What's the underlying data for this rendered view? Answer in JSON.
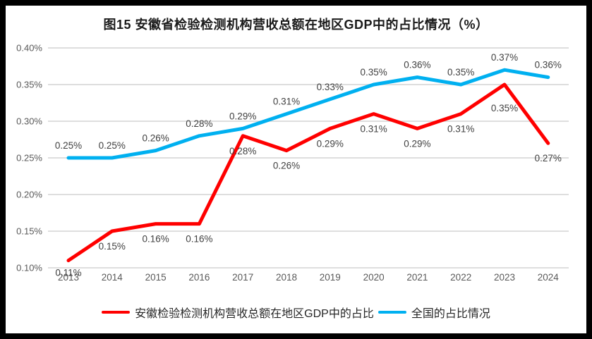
{
  "title": "图15 安徽省检验检测机构营收总额在地区GDP中的占比情况（%）",
  "colors": {
    "frame": "#000000",
    "background": "#FFFFFF",
    "grid": "#D9D9D9",
    "axis_text": "#595959",
    "label_text": "#404040",
    "anhui_red": "#FF0000",
    "national_blue": "#00B0F0"
  },
  "chart_data": {
    "type": "line",
    "title": "图15 安徽省检验检测机构营收总额在地区GDP中的占比情况（%）",
    "categories": [
      "2013",
      "2014",
      "2015",
      "2016",
      "2017",
      "2018",
      "2019",
      "2020",
      "2021",
      "2022",
      "2023",
      "2024"
    ],
    "series": [
      {
        "id": "anhui",
        "name": "安徽检验检测机构营收总额在地区GDP中的占比",
        "color": "#FF0000",
        "values": [
          0.11,
          0.15,
          0.16,
          0.16,
          0.28,
          0.26,
          0.29,
          0.31,
          0.29,
          0.31,
          0.35,
          0.27
        ],
        "labels": [
          "0.11%",
          "0.15%",
          "0.16%",
          "0.16%",
          "0.28%",
          "0.26%",
          "0.29%",
          "0.31%",
          "0.29%",
          "0.31%",
          "0.35%",
          "0.27%"
        ]
      },
      {
        "id": "national",
        "name": "全国的占比情况",
        "color": "#00B0F0",
        "values": [
          0.25,
          0.25,
          0.26,
          0.28,
          0.29,
          0.31,
          0.33,
          0.35,
          0.36,
          0.35,
          0.37,
          0.36
        ],
        "labels": [
          "0.25%",
          "0.25%",
          "0.26%",
          "0.28%",
          "0.29%",
          "0.31%",
          "0.33%",
          "0.35%",
          "0.36%",
          "0.35%",
          "0.37%",
          "0.36%"
        ]
      }
    ],
    "xlabel": "",
    "ylabel": "",
    "ylim": [
      0.1,
      0.4
    ],
    "ytick_step": 0.05,
    "ytick_labels": [
      "0.40%",
      "0.35%",
      "0.30%",
      "0.25%",
      "0.20%",
      "0.15%",
      "0.10%"
    ],
    "grid": true,
    "legend_position": "bottom",
    "data_labels": true
  }
}
